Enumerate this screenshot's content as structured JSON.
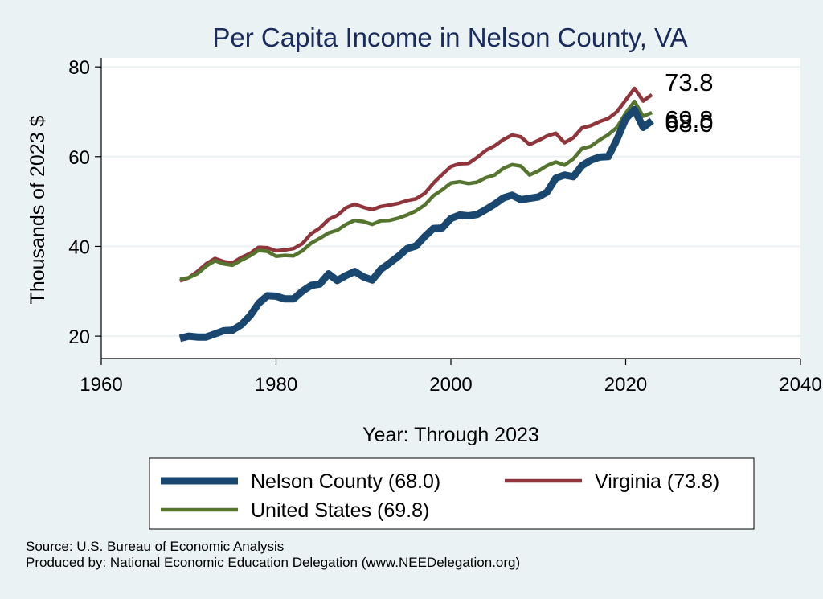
{
  "chart_data": {
    "type": "line",
    "title": "Per Capita Income in Nelson County, VA",
    "xlabel": "Year: Through 2023",
    "ylabel": "Thousands of 2023 $",
    "xlim": [
      1960,
      2040
    ],
    "ylim": [
      15,
      82
    ],
    "xticks": [
      1960,
      1980,
      2000,
      2020,
      2040
    ],
    "yticks": [
      20,
      40,
      60,
      80
    ],
    "grid": true,
    "legend_position": "bottom",
    "x": [
      1969,
      1970,
      1971,
      1972,
      1973,
      1974,
      1975,
      1976,
      1977,
      1978,
      1979,
      1980,
      1981,
      1982,
      1983,
      1984,
      1985,
      1986,
      1987,
      1988,
      1989,
      1990,
      1991,
      1992,
      1993,
      1994,
      1995,
      1996,
      1997,
      1998,
      1999,
      2000,
      2001,
      2002,
      2003,
      2004,
      2005,
      2006,
      2007,
      2008,
      2009,
      2010,
      2011,
      2012,
      2013,
      2014,
      2015,
      2016,
      2017,
      2018,
      2019,
      2020,
      2021,
      2022,
      2023
    ],
    "series": [
      {
        "name": "Nelson County (68.0)",
        "color": "#1a476f",
        "values": [
          19.5,
          20.0,
          19.8,
          19.8,
          20.5,
          21.2,
          21.3,
          22.5,
          24.5,
          27.3,
          29.0,
          28.9,
          28.3,
          28.3,
          30.0,
          31.3,
          31.6,
          33.9,
          32.4,
          33.5,
          34.4,
          33.2,
          32.5,
          34.9,
          36.3,
          37.8,
          39.5,
          40.1,
          42.2,
          44.0,
          44.1,
          46.2,
          47.0,
          46.8,
          47.1,
          48.2,
          49.4,
          50.8,
          51.4,
          50.4,
          50.7,
          51.0,
          52.1,
          55.2,
          55.9,
          55.5,
          58.0,
          59.2,
          59.9,
          60.0,
          63.8,
          68.4,
          70.5,
          66.5,
          68.0
        ],
        "end_label": "68.0"
      },
      {
        "name": "Virginia (73.8)",
        "color": "#90353b",
        "values": [
          32.3,
          33.0,
          34.4,
          36.1,
          37.3,
          36.6,
          36.3,
          37.5,
          38.4,
          39.8,
          39.7,
          39.0,
          39.2,
          39.5,
          40.6,
          42.8,
          44.1,
          46.0,
          46.9,
          48.6,
          49.4,
          48.7,
          48.2,
          48.9,
          49.2,
          49.6,
          50.2,
          50.6,
          51.8,
          54.1,
          56.0,
          57.8,
          58.4,
          58.5,
          59.8,
          61.4,
          62.4,
          63.8,
          64.8,
          64.4,
          62.7,
          63.6,
          64.6,
          65.2,
          63.1,
          64.2,
          66.4,
          66.9,
          67.8,
          68.5,
          70.0,
          72.6,
          75.2,
          72.4,
          73.8
        ],
        "end_label": "73.8"
      },
      {
        "name": "United States (69.8)",
        "color": "#55752f",
        "values": [
          32.7,
          33.0,
          33.9,
          35.6,
          36.8,
          36.1,
          35.8,
          36.9,
          37.9,
          39.1,
          38.9,
          37.8,
          38.0,
          37.9,
          39.0,
          40.7,
          41.8,
          43.0,
          43.6,
          44.9,
          45.8,
          45.5,
          44.9,
          45.7,
          45.8,
          46.3,
          47.0,
          47.9,
          49.2,
          51.3,
          52.6,
          54.1,
          54.4,
          54.0,
          54.3,
          55.3,
          55.9,
          57.4,
          58.2,
          57.9,
          55.9,
          56.8,
          58.0,
          58.8,
          58.1,
          59.5,
          61.8,
          62.3,
          63.7,
          64.9,
          66.5,
          69.7,
          72.3,
          69.0,
          69.8
        ],
        "end_label": "69.8"
      }
    ],
    "source_lines": [
      "Source: U.S. Bureau of Economic Analysis",
      "Produced by: National Economic Education Delegation (www.NEEDelegation.org)"
    ]
  }
}
